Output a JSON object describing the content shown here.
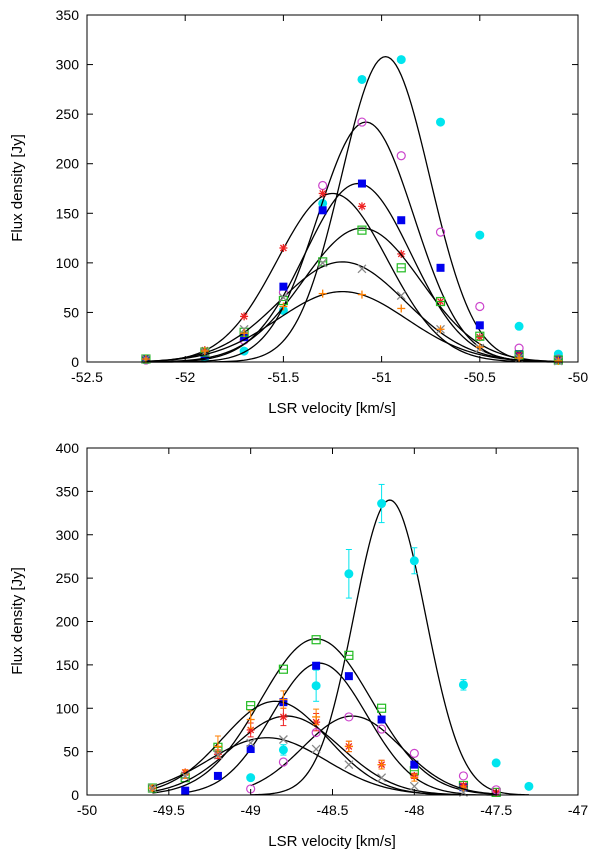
{
  "chart_data": [
    {
      "type": "scatter",
      "title": "",
      "xlabel": "LSR velocity [km/s]",
      "ylabel": "Flux density [Jy]",
      "xlim": [
        -52.5,
        -50
      ],
      "ylim": [
        0,
        350
      ],
      "xticks": [
        -52.5,
        -52,
        -51.5,
        -51,
        -50.5,
        -50
      ],
      "yticks": [
        0,
        50,
        100,
        150,
        200,
        250,
        300,
        350
      ],
      "grid": false,
      "legend": "none",
      "series": [
        {
          "marker": "circle-filled",
          "color": "#00e5ee",
          "x": [
            -52.2,
            -51.9,
            -51.7,
            -51.5,
            -51.3,
            -51.1,
            -50.9,
            -50.7,
            -50.5,
            -50.3,
            -50.1
          ],
          "y": [
            2,
            4,
            11,
            52,
            160,
            285,
            305,
            242,
            128,
            36,
            8
          ],
          "fit": {
            "amp": 308,
            "mu": -50.98,
            "sigma": 0.225
          }
        },
        {
          "marker": "circle-open",
          "color": "#cc44cc",
          "x": [
            -52.2,
            -51.9,
            -51.7,
            -51.5,
            -51.3,
            -51.1,
            -50.9,
            -50.7,
            -50.5,
            -50.3,
            -50.1
          ],
          "y": [
            2,
            8,
            22,
            70,
            178,
            242,
            208,
            131,
            56,
            14,
            3
          ],
          "fit": {
            "amp": 242,
            "mu": -51.08,
            "sigma": 0.245
          }
        },
        {
          "marker": "square-filled",
          "color": "#0000ee",
          "x": [
            -52.2,
            -51.9,
            -51.7,
            -51.5,
            -51.3,
            -51.1,
            -50.9,
            -50.7,
            -50.5,
            -50.3,
            -50.1
          ],
          "y": [
            3,
            7,
            25,
            76,
            153,
            180,
            143,
            95,
            37,
            8,
            2
          ],
          "fit": {
            "amp": 180,
            "mu": -51.12,
            "sigma": 0.27
          }
        },
        {
          "marker": "star",
          "color": "#ee2222",
          "x": [
            -52.2,
            -51.9,
            -51.7,
            -51.5,
            -51.3,
            -51.1,
            -50.9,
            -50.7,
            -50.5,
            -50.3,
            -50.1
          ],
          "y": [
            3,
            12,
            46,
            115,
            170,
            157,
            109,
            61,
            25,
            7,
            2
          ],
          "fit": {
            "amp": 170,
            "mu": -51.25,
            "sigma": 0.28
          }
        },
        {
          "marker": "square-open",
          "color": "#22bb22",
          "x": [
            -52.2,
            -51.9,
            -51.7,
            -51.5,
            -51.3,
            -51.1,
            -50.9,
            -50.7,
            -50.5,
            -50.3,
            -50.1
          ],
          "y": [
            3,
            10,
            30,
            62,
            101,
            133,
            95,
            61,
            26,
            7,
            2
          ],
          "fit": {
            "amp": 135,
            "mu": -51.1,
            "sigma": 0.3
          }
        },
        {
          "marker": "cross",
          "color": "#888888",
          "x": [
            -52.2,
            -51.9,
            -51.7,
            -51.5,
            -51.3,
            -51.1,
            -50.9,
            -50.7,
            -50.5,
            -50.3,
            -50.1
          ],
          "y": [
            3,
            10,
            33,
            65,
            100,
            94,
            67,
            33,
            14,
            4,
            1
          ],
          "fit": {
            "amp": 101,
            "mu": -51.2,
            "sigma": 0.32
          }
        },
        {
          "marker": "plus",
          "color": "#ff7f00",
          "x": [
            -52.2,
            -51.9,
            -51.7,
            -51.5,
            -51.3,
            -51.1,
            -50.9,
            -50.7,
            -50.5,
            -50.3,
            -50.1
          ],
          "y": [
            3,
            11,
            29,
            56,
            69,
            68,
            54,
            33,
            15,
            4,
            1
          ],
          "fit": {
            "amp": 71,
            "mu": -51.2,
            "sigma": 0.33
          }
        }
      ]
    },
    {
      "type": "scatter",
      "title": "",
      "xlabel": "LSR velocity [km/s]",
      "ylabel": "Flux density [Jy]",
      "xlim": [
        -50,
        -47
      ],
      "ylim": [
        0,
        400
      ],
      "xticks": [
        -50,
        -49.5,
        -49,
        -48.5,
        -48,
        -47.5,
        -47
      ],
      "yticks": [
        0,
        50,
        100,
        150,
        200,
        250,
        300,
        350,
        400
      ],
      "grid": false,
      "legend": "none",
      "series": [
        {
          "marker": "circle-filled",
          "color": "#00e5ee",
          "x": [
            -49,
            -48.8,
            -48.6,
            -48.4,
            -48.2,
            -48,
            -47.7,
            -47.5,
            -47.3
          ],
          "y": [
            20,
            52,
            126,
            255,
            336,
            270,
            127,
            37,
            10
          ],
          "yerr": [
            3,
            6,
            18,
            28,
            22,
            15,
            6,
            3,
            2
          ],
          "fit": {
            "amp": 340,
            "mu": -48.15,
            "sigma": 0.22
          }
        },
        {
          "marker": "square-open",
          "color": "#22bb22",
          "x": [
            -49.6,
            -49.4,
            -49.2,
            -49,
            -48.8,
            -48.6,
            -48.4,
            -48.2,
            -48,
            -47.7,
            -47.5
          ],
          "y": [
            8,
            20,
            55,
            103,
            145,
            179,
            161,
            100,
            28,
            11,
            3
          ],
          "fit": {
            "amp": 180,
            "mu": -48.6,
            "sigma": 0.34
          }
        },
        {
          "marker": "square-filled",
          "color": "#0000ee",
          "x": [
            -49.4,
            -49.2,
            -49,
            -48.8,
            -48.6,
            -48.4,
            -48.2,
            -48,
            -47.7
          ],
          "y": [
            5,
            22,
            53,
            107,
            149,
            137,
            87,
            35,
            9
          ],
          "fit": {
            "amp": 152,
            "mu": -48.58,
            "sigma": 0.29
          }
        },
        {
          "marker": "star",
          "color": "#ee2222",
          "x": [
            -49.6,
            -49.4,
            -49.2,
            -49,
            -48.8,
            -48.6,
            -48.4,
            -48.2,
            -48,
            -47.7,
            -47.5
          ],
          "y": [
            8,
            26,
            47,
            75,
            90,
            84,
            56,
            35,
            22,
            11,
            3
          ],
          "yerr": [
            2,
            3,
            5,
            8,
            10,
            10,
            6,
            5,
            3,
            2,
            1
          ],
          "fit": {
            "amp": 91,
            "mu": -48.78,
            "sigma": 0.33
          }
        },
        {
          "marker": "plus",
          "color": "#ff7f00",
          "x": [
            -49.6,
            -49.4,
            -49.2,
            -49,
            -48.8,
            -48.6,
            -48.4,
            -48.2,
            -48,
            -47.7
          ],
          "y": [
            8,
            24,
            56,
            87,
            110,
            90,
            56,
            35,
            20,
            8
          ],
          "yerr": [
            3,
            5,
            12,
            10,
            10,
            9,
            6,
            5,
            4,
            2
          ],
          "fit": {
            "amp": 108,
            "mu": -48.85,
            "sigma": 0.32
          }
        },
        {
          "marker": "cross",
          "color": "#888888",
          "x": [
            -49.6,
            -49.4,
            -49.2,
            -49,
            -48.8,
            -48.6,
            -48.4,
            -48.2,
            -48,
            -47.7
          ],
          "y": [
            8,
            22,
            46,
            60,
            64,
            53,
            35,
            20,
            10,
            3
          ],
          "fit": {
            "amp": 66,
            "mu": -48.9,
            "sigma": 0.36
          }
        },
        {
          "marker": "circle-open",
          "color": "#cc44cc",
          "x": [
            -49,
            -48.8,
            -48.6,
            -48.4,
            -48.2,
            -48,
            -47.7,
            -47.5
          ],
          "y": [
            7,
            38,
            72,
            90,
            76,
            48,
            22,
            6
          ],
          "fit": {
            "amp": 91,
            "mu": -48.38,
            "sigma": 0.3
          }
        }
      ]
    }
  ]
}
